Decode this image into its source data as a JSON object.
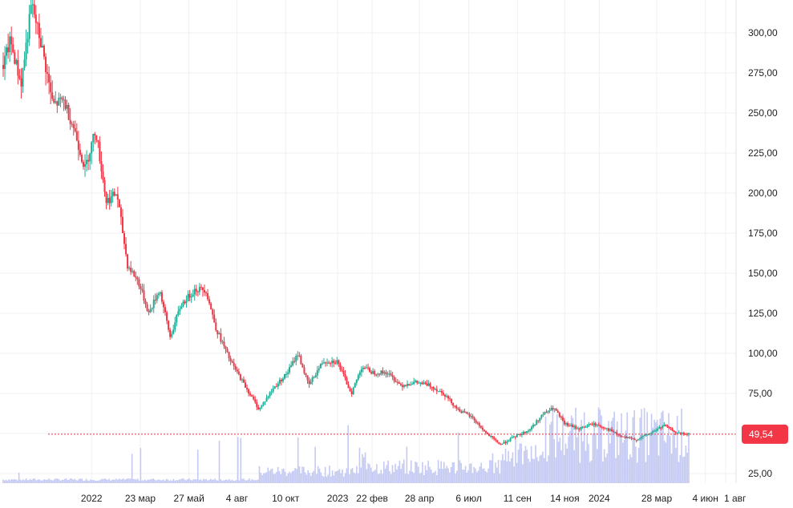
{
  "chart_data": {
    "type": "candlestick",
    "title": "",
    "xlabel": "",
    "ylabel": "",
    "ylim": [
      18,
      318
    ],
    "y_ticks": [
      {
        "value": 300,
        "label": "300,00"
      },
      {
        "value": 275,
        "label": "275,00"
      },
      {
        "value": 250,
        "label": "250,00"
      },
      {
        "value": 225,
        "label": "225,00"
      },
      {
        "value": 200,
        "label": "200,00"
      },
      {
        "value": 175,
        "label": "175,00"
      },
      {
        "value": 150,
        "label": "150,00"
      },
      {
        "value": 125,
        "label": "125,00"
      },
      {
        "value": 100,
        "label": "100,00"
      },
      {
        "value": 75,
        "label": "75,00"
      },
      {
        "value": 25,
        "label": "25,00"
      }
    ],
    "x_ticks": [
      {
        "pos": 0.062,
        "label": "2022"
      },
      {
        "pos": 0.134,
        "label": "23 мар"
      },
      {
        "pos": 0.206,
        "label": "27 май"
      },
      {
        "pos": 0.277,
        "label": "4 авг"
      },
      {
        "pos": 0.349,
        "label": "10 окт"
      },
      {
        "pos": 0.426,
        "label": "2023"
      },
      {
        "pos": 0.477,
        "label": "22 фев"
      },
      {
        "pos": 0.547,
        "label": "28 апр"
      },
      {
        "pos": 0.62,
        "label": "6 июл"
      },
      {
        "pos": 0.692,
        "label": "11 сен"
      },
      {
        "pos": 0.762,
        "label": "14 ноя"
      },
      {
        "pos": 0.813,
        "label": "2024"
      },
      {
        "pos": 0.898,
        "label": "28 мар"
      },
      {
        "pos": 0.97,
        "label": "4 июн"
      },
      {
        "pos": 1.0,
        "label": "1 авг"
      }
    ],
    "price_anchors": [
      [
        0.0,
        280
      ],
      [
        0.01,
        295
      ],
      [
        0.025,
        268
      ],
      [
        0.04,
        318
      ],
      [
        0.055,
        290
      ],
      [
        0.07,
        255
      ],
      [
        0.085,
        258
      ],
      [
        0.1,
        240
      ],
      [
        0.115,
        215
      ],
      [
        0.13,
        240
      ],
      [
        0.145,
        195
      ],
      [
        0.16,
        200
      ],
      [
        0.175,
        155
      ],
      [
        0.19,
        145
      ],
      [
        0.205,
        125
      ],
      [
        0.22,
        140
      ],
      [
        0.235,
        110
      ],
      [
        0.25,
        130
      ],
      [
        0.27,
        140
      ],
      [
        0.285,
        140
      ],
      [
        0.3,
        115
      ],
      [
        0.32,
        95
      ],
      [
        0.34,
        80
      ],
      [
        0.36,
        65
      ],
      [
        0.38,
        78
      ],
      [
        0.4,
        88
      ],
      [
        0.415,
        100
      ],
      [
        0.43,
        80
      ],
      [
        0.45,
        95
      ],
      [
        0.47,
        95
      ],
      [
        0.49,
        75
      ],
      [
        0.505,
        92
      ],
      [
        0.52,
        88
      ],
      [
        0.54,
        88
      ],
      [
        0.56,
        80
      ],
      [
        0.58,
        82
      ],
      [
        0.6,
        80
      ],
      [
        0.62,
        75
      ],
      [
        0.64,
        65
      ],
      [
        0.66,
        60
      ],
      [
        0.68,
        50
      ],
      [
        0.7,
        43
      ],
      [
        0.72,
        48
      ],
      [
        0.74,
        52
      ],
      [
        0.76,
        62
      ],
      [
        0.775,
        66
      ],
      [
        0.79,
        56
      ],
      [
        0.81,
        53
      ],
      [
        0.83,
        56
      ],
      [
        0.85,
        53
      ],
      [
        0.87,
        48
      ],
      [
        0.89,
        46
      ],
      [
        0.91,
        50
      ],
      [
        0.93,
        55
      ],
      [
        0.95,
        50
      ],
      [
        0.965,
        49.54
      ]
    ],
    "current_price": {
      "value": 49.54,
      "label": "49,54"
    },
    "colors": {
      "up": "#22ab94",
      "down": "#f23645",
      "volume": "#c5caf2",
      "price_line": "#f23645",
      "badge": "#f23645",
      "grid": "#eef0f3"
    }
  }
}
